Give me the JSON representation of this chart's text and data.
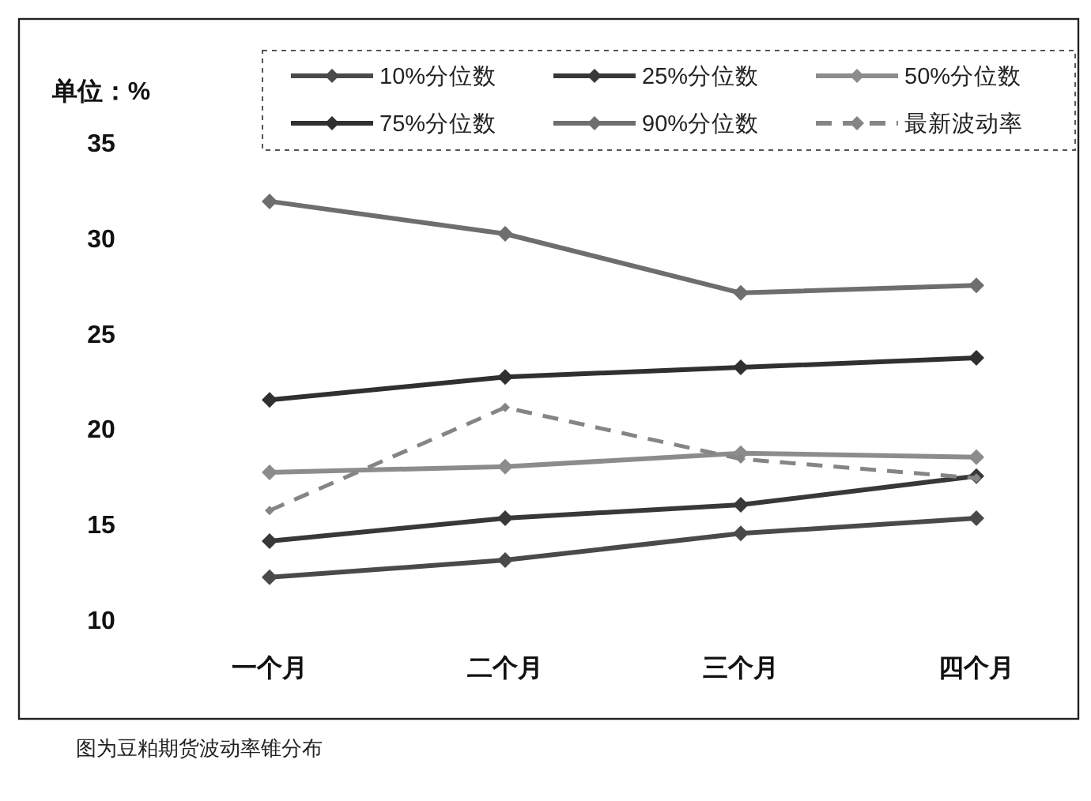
{
  "chart_data": {
    "type": "line",
    "ylabel": "单位：%",
    "categories": [
      "一个月",
      "二个月",
      "三个月",
      "四个月"
    ],
    "series": [
      {
        "name": "10%分位数",
        "color": "#4a4a4a",
        "values": [
          12.2,
          13.1,
          14.5,
          15.3
        ]
      },
      {
        "name": "25%分位数",
        "color": "#383838",
        "values": [
          14.1,
          15.3,
          16.0,
          17.5
        ]
      },
      {
        "name": "50%分位数",
        "color": "#8c8c8c",
        "values": [
          17.7,
          18.0,
          18.7,
          18.5
        ]
      },
      {
        "name": "75%分位数",
        "color": "#303030",
        "values": [
          21.5,
          22.7,
          23.2,
          23.7
        ]
      },
      {
        "name": "90%分位数",
        "color": "#6e6e6e",
        "values": [
          31.9,
          30.2,
          27.1,
          27.5
        ]
      },
      {
        "name": "最新波动率",
        "color": "#858585",
        "line_style": "dashed",
        "values": [
          15.7,
          21.1,
          18.4,
          17.4
        ]
      }
    ],
    "ylim": [
      10,
      35
    ],
    "yticks": [
      10,
      15,
      20,
      25,
      30,
      35
    ],
    "grid": false,
    "legend": "top",
    "marker": "diamond",
    "line_style": "solid",
    "annotations": [
      "图为豆粕期货波动率锥分布"
    ]
  }
}
